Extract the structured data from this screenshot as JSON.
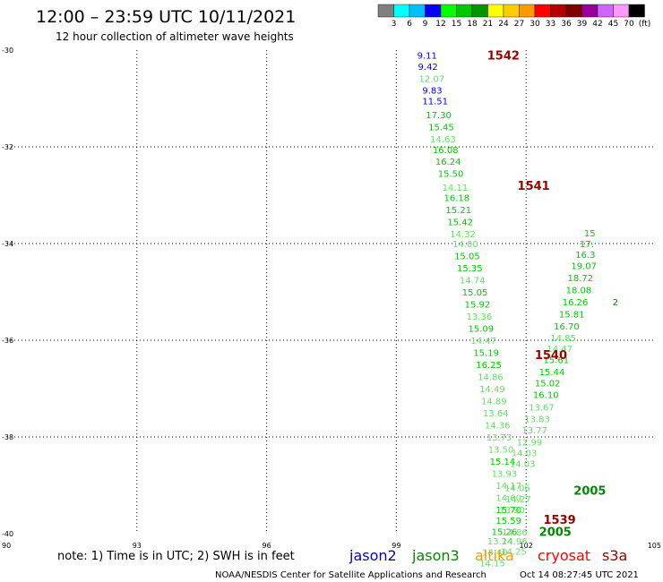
{
  "header": {
    "title": "12:00 – 23:59 UTC 10/11/2021",
    "subtitle": "12 hour collection of altimeter wave heights"
  },
  "colorbar": {
    "labels": [
      "3",
      "6",
      "9",
      "12",
      "15",
      "18",
      "21",
      "24",
      "27",
      "30",
      "33",
      "36",
      "39",
      "42",
      "45",
      "70",
      "(ft)"
    ],
    "colors": [
      "#808080",
      "#00ffff",
      "#00bfff",
      "#0000ff",
      "#00ff00",
      "#00c800",
      "#009600",
      "#ffff00",
      "#ffcc00",
      "#ff9900",
      "#ff0000",
      "#b40000",
      "#800000",
      "#990099",
      "#cc66ff",
      "#ff99ff",
      "#000000"
    ]
  },
  "note": "note:  1) Time is in UTC;  2) SWH is in feet",
  "satellites": [
    {
      "name": "jason2",
      "color": "#0000cc"
    },
    {
      "name": "jason3",
      "color": "#008800"
    },
    {
      "name": "altika",
      "color": "#ff9900"
    },
    {
      "name": "cryosat",
      "color": "#ff0000"
    },
    {
      "name": "s3a",
      "color": "#990000"
    }
  ],
  "footer": {
    "credit": "NOAA/NESDIS Center for Satellite Applications and Research",
    "timestamp": "Oct 14 08:27:45 UTC 2021"
  },
  "chart_data": {
    "type": "scatter",
    "xlim": [
      90,
      105
    ],
    "ylim": [
      -40,
      -30
    ],
    "xticks": [
      {
        "v": 90,
        "label": "90"
      },
      {
        "v": 93,
        "label": "93"
      },
      {
        "v": 96,
        "label": "96"
      },
      {
        "v": 99,
        "label": "99"
      },
      {
        "v": 102,
        "label": "102"
      },
      {
        "v": 105,
        "label": "105"
      }
    ],
    "yticks": [
      {
        "v": -30,
        "label": "-30"
      },
      {
        "v": -32,
        "label": "-32"
      },
      {
        "v": -34,
        "label": "-34"
      },
      {
        "v": -36,
        "label": "-36"
      },
      {
        "v": -38,
        "label": "-38"
      },
      {
        "v": -40,
        "label": "-40"
      }
    ],
    "grid": true,
    "pass_labels": [
      {
        "x": 101.1,
        "y": -30.1,
        "text": "1542",
        "color": "#990000"
      },
      {
        "x": 101.8,
        "y": -32.8,
        "text": "1541",
        "color": "#990000"
      },
      {
        "x": 102.2,
        "y": -36.3,
        "text": "1540",
        "color": "#990000"
      },
      {
        "x": 102.4,
        "y": -39.7,
        "text": "1539",
        "color": "#990000"
      },
      {
        "x": 103.1,
        "y": -39.1,
        "text": "2005",
        "color": "#008800"
      },
      {
        "x": 102.3,
        "y": -39.95,
        "text": "2005",
        "color": "#008800"
      }
    ],
    "points": [
      {
        "x": 99.48,
        "y": -30.1,
        "v": "9.11",
        "c": "#0000ff"
      },
      {
        "x": 99.5,
        "y": -30.33,
        "v": "9.42",
        "c": "#0000ff"
      },
      {
        "x": 99.52,
        "y": -30.58,
        "v": "12.07",
        "c": "#66dd66"
      },
      {
        "x": 99.6,
        "y": -30.82,
        "v": "9.83",
        "c": "#0000ff"
      },
      {
        "x": 99.6,
        "y": -31.05,
        "v": "11.51",
        "c": "#0000ff"
      },
      {
        "x": 99.68,
        "y": -31.33,
        "v": "17.30",
        "c": "#00c800"
      },
      {
        "x": 99.74,
        "y": -31.58,
        "v": "15.45",
        "c": "#00c800"
      },
      {
        "x": 99.78,
        "y": -31.83,
        "v": "14.63",
        "c": "#66dd66"
      },
      {
        "x": 99.84,
        "y": -32.06,
        "v": "16.08",
        "c": "#00c800"
      },
      {
        "x": 99.9,
        "y": -32.3,
        "v": "16.24",
        "c": "#00c800"
      },
      {
        "x": 99.96,
        "y": -32.55,
        "v": "15.50",
        "c": "#00c800"
      },
      {
        "x": 100.06,
        "y": -32.83,
        "v": "14.11",
        "c": "#66dd66"
      },
      {
        "x": 100.1,
        "y": -33.05,
        "v": "16.18",
        "c": "#00c800"
      },
      {
        "x": 100.14,
        "y": -33.3,
        "v": "15.21",
        "c": "#00c800"
      },
      {
        "x": 100.18,
        "y": -33.55,
        "v": "15.42",
        "c": "#00c800"
      },
      {
        "x": 100.24,
        "y": -33.8,
        "v": "14.32",
        "c": "#66dd66"
      },
      {
        "x": 100.3,
        "y": -34.0,
        "v": "14.00",
        "c": "#66dd66"
      },
      {
        "x": 100.34,
        "y": -34.25,
        "v": "15.05",
        "c": "#00c800"
      },
      {
        "x": 100.4,
        "y": -34.5,
        "v": "15.35",
        "c": "#00c800"
      },
      {
        "x": 100.46,
        "y": -34.75,
        "v": "14.74",
        "c": "#66dd66"
      },
      {
        "x": 100.52,
        "y": -35.0,
        "v": "15.05",
        "c": "#00c800"
      },
      {
        "x": 100.58,
        "y": -35.25,
        "v": "15.92",
        "c": "#00c800"
      },
      {
        "x": 100.62,
        "y": -35.5,
        "v": "13.36",
        "c": "#66dd66"
      },
      {
        "x": 100.66,
        "y": -35.75,
        "v": "15.09",
        "c": "#00c800"
      },
      {
        "x": 100.72,
        "y": -36.0,
        "v": "14.47",
        "c": "#66dd66"
      },
      {
        "x": 100.78,
        "y": -36.25,
        "v": "15.19",
        "c": "#00c800"
      },
      {
        "x": 100.84,
        "y": -36.5,
        "v": "16.25",
        "c": "#00c800"
      },
      {
        "x": 100.88,
        "y": -36.75,
        "v": "14.86",
        "c": "#66dd66"
      },
      {
        "x": 100.92,
        "y": -37.0,
        "v": "14.49",
        "c": "#66dd66"
      },
      {
        "x": 100.96,
        "y": -37.25,
        "v": "14.89",
        "c": "#66dd66"
      },
      {
        "x": 101.0,
        "y": -37.5,
        "v": "13.64",
        "c": "#66dd66"
      },
      {
        "x": 101.04,
        "y": -37.75,
        "v": "14.36",
        "c": "#66dd66"
      },
      {
        "x": 101.08,
        "y": -38.0,
        "v": "13.73",
        "c": "#66dd66"
      },
      {
        "x": 101.12,
        "y": -38.25,
        "v": "13.50",
        "c": "#66dd66"
      },
      {
        "x": 101.16,
        "y": -38.5,
        "v": "15.14",
        "c": "#00c800"
      },
      {
        "x": 101.2,
        "y": -38.75,
        "v": "13.93",
        "c": "#66dd66"
      },
      {
        "x": 101.3,
        "y": -39.0,
        "v": "14.17",
        "c": "#66dd66"
      },
      {
        "x": 101.3,
        "y": -39.25,
        "v": "14.60",
        "c": "#66dd66"
      },
      {
        "x": 101.3,
        "y": -39.5,
        "v": "15.70",
        "c": "#00c800"
      },
      {
        "x": 101.3,
        "y": -39.72,
        "v": "15.59",
        "c": "#00c800"
      },
      {
        "x": 101.2,
        "y": -39.95,
        "v": "15.26",
        "c": "#00c800"
      },
      {
        "x": 101.1,
        "y": -40.15,
        "v": "13.24",
        "c": "#66dd66"
      },
      {
        "x": 100.98,
        "y": -40.38,
        "v": "13.40",
        "c": "#66dd66"
      },
      {
        "x": 100.92,
        "y": -40.6,
        "v": "14.15",
        "c": "#66dd66"
      },
      {
        "x": 101.5,
        "y": -39.05,
        "v": "14.06",
        "c": "#66dd66"
      },
      {
        "x": 101.52,
        "y": -39.28,
        "v": "14.27",
        "c": "#66dd66"
      },
      {
        "x": 101.38,
        "y": -39.5,
        "v": "13.90",
        "c": "#66dd66"
      },
      {
        "x": 101.44,
        "y": -39.96,
        "v": "14.86",
        "c": "#66dd66"
      },
      {
        "x": 101.44,
        "y": -40.15,
        "v": "14.96",
        "c": "#66dd66"
      },
      {
        "x": 101.42,
        "y": -40.36,
        "v": "14.25",
        "c": "#66dd66"
      },
      {
        "x": 101.62,
        "y": -38.55,
        "v": "14.03",
        "c": "#66dd66"
      },
      {
        "x": 101.66,
        "y": -38.32,
        "v": "14.03",
        "c": "#66dd66"
      },
      {
        "x": 101.78,
        "y": -38.1,
        "v": "12.99",
        "c": "#66dd66"
      },
      {
        "x": 101.9,
        "y": -37.85,
        "v": "13.77",
        "c": "#66dd66"
      },
      {
        "x": 101.96,
        "y": -37.62,
        "v": "13.83",
        "c": "#66dd66"
      },
      {
        "x": 102.06,
        "y": -37.38,
        "v": "13.67",
        "c": "#66dd66"
      },
      {
        "x": 102.16,
        "y": -37.12,
        "v": "16.10",
        "c": "#00c800"
      },
      {
        "x": 102.2,
        "y": -36.88,
        "v": "15.02",
        "c": "#00c800"
      },
      {
        "x": 102.3,
        "y": -36.65,
        "v": "15.44",
        "c": "#00c800"
      },
      {
        "x": 102.4,
        "y": -36.4,
        "v": "15.61",
        "c": "#00c800"
      },
      {
        "x": 102.48,
        "y": -36.17,
        "v": "14.47",
        "c": "#66dd66"
      },
      {
        "x": 102.56,
        "y": -35.94,
        "v": "14.85",
        "c": "#66dd66"
      },
      {
        "x": 102.64,
        "y": -35.7,
        "v": "16.70",
        "c": "#00c800"
      },
      {
        "x": 102.76,
        "y": -35.45,
        "v": "15.81",
        "c": "#00c800"
      },
      {
        "x": 102.84,
        "y": -35.2,
        "v": "16.26",
        "c": "#00c800"
      },
      {
        "x": 102.92,
        "y": -34.95,
        "v": "18.08",
        "c": "#00c800"
      },
      {
        "x": 102.96,
        "y": -34.7,
        "v": "18.72",
        "c": "#00c800"
      },
      {
        "x": 103.04,
        "y": -34.45,
        "v": "19.07",
        "c": "#00c800"
      },
      {
        "x": 103.14,
        "y": -34.22,
        "v": "16.3",
        "c": "#00c800"
      },
      {
        "x": 103.24,
        "y": -34.0,
        "v": "17.",
        "c": "#00c800"
      },
      {
        "x": 103.34,
        "y": -33.78,
        "v": "15",
        "c": "#00c800"
      },
      {
        "x": 104.0,
        "y": -35.2,
        "v": "2",
        "c": "#008800"
      }
    ]
  }
}
